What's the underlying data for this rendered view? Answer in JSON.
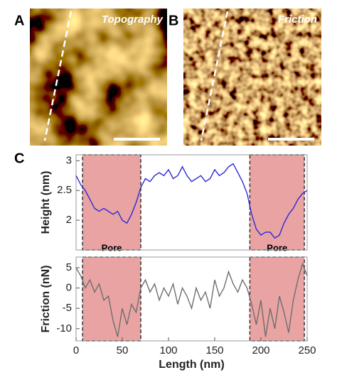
{
  "panels": [
    {
      "letter": "A",
      "title": "Topography"
    },
    {
      "letter": "B",
      "title": "Friction"
    }
  ],
  "chart_letter": "C",
  "chart_data": [
    {
      "type": "line",
      "ylabel": "Height (nm)",
      "xlim": [
        0,
        250
      ],
      "ylim": [
        1.5,
        3.1
      ],
      "yticks": [
        2,
        2.5,
        3
      ],
      "annotations": [
        {
          "text": "Pore",
          "x0": 7,
          "x1": 70
        },
        {
          "text": "Pore",
          "x0": 188,
          "x1": 247
        }
      ],
      "series": [
        {
          "color": "#2b2bd6",
          "x": [
            0,
            5,
            10,
            15,
            20,
            25,
            30,
            35,
            40,
            45,
            50,
            55,
            60,
            65,
            70,
            75,
            80,
            85,
            90,
            95,
            100,
            105,
            110,
            115,
            120,
            125,
            130,
            135,
            140,
            145,
            150,
            155,
            160,
            165,
            170,
            175,
            180,
            185,
            190,
            195,
            200,
            205,
            210,
            215,
            220,
            225,
            230,
            235,
            240,
            245,
            250
          ],
          "values": [
            2.75,
            2.6,
            2.5,
            2.35,
            2.2,
            2.15,
            2.2,
            2.15,
            2.1,
            2.15,
            2.0,
            1.95,
            2.1,
            2.3,
            2.55,
            2.7,
            2.65,
            2.75,
            2.8,
            2.75,
            2.85,
            2.7,
            2.75,
            2.9,
            2.75,
            2.65,
            2.7,
            2.75,
            2.65,
            2.7,
            2.85,
            2.75,
            2.8,
            2.9,
            2.95,
            2.8,
            2.65,
            2.45,
            2.1,
            1.85,
            1.75,
            1.8,
            1.8,
            1.7,
            1.75,
            1.95,
            2.1,
            2.2,
            2.35,
            2.45,
            2.5
          ]
        }
      ]
    },
    {
      "type": "line",
      "ylabel": "Friction (nN)",
      "xlabel": "Length (nm)",
      "xlim": [
        0,
        250
      ],
      "ylim": [
        -13,
        7.6
      ],
      "xticks": [
        0,
        50,
        100,
        150,
        200,
        250
      ],
      "yticks": [
        5,
        0,
        -5,
        -10
      ],
      "series": [
        {
          "color": "#6e6e6e",
          "x": [
            0,
            5,
            10,
            15,
            20,
            25,
            30,
            35,
            40,
            45,
            50,
            55,
            60,
            65,
            70,
            75,
            80,
            85,
            90,
            95,
            100,
            105,
            110,
            115,
            120,
            125,
            130,
            135,
            140,
            145,
            150,
            155,
            160,
            165,
            170,
            175,
            180,
            185,
            190,
            195,
            200,
            205,
            210,
            215,
            220,
            225,
            230,
            235,
            240,
            245,
            250
          ],
          "values": [
            5,
            3,
            0,
            2,
            -1,
            1,
            -3,
            -2,
            -8,
            -12,
            -5,
            -9,
            -4,
            -6,
            0,
            2,
            -1,
            1,
            -3,
            0,
            -2,
            1,
            -4,
            0,
            -2,
            -5,
            0,
            -3,
            -1,
            -5,
            2,
            -2,
            0,
            4,
            1,
            -1,
            2,
            0,
            -4,
            -9,
            -3,
            -12,
            -5,
            -10,
            -2,
            -6,
            -11,
            -3,
            2,
            6,
            3
          ]
        }
      ]
    }
  ]
}
